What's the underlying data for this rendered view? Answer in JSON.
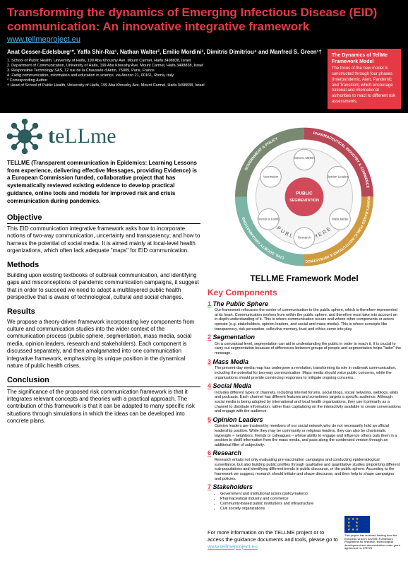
{
  "header": {
    "title": "Transforming the dynamics of Emerging Infectious Disease (EID) communication: An innovative integrative framework",
    "url": "www.tellmeproject.eu",
    "authors": "Anat Gesser-Edelsburg¹*, Yaffa Shir-Raz¹, Nathan Walter², Emilio Mordini³, Dimitris Dimitriou⁴ and Manfred S. Green¹†",
    "affils": [
      "1. School of Public Health, University of Haifa, 199 Aba Khoushy Ave. Mount Carmel, Haifa 3498838, Israel",
      "2. Department of Communication, University of Haifa, 199 Aba Khoushy Ave. Mount Carmel, Haifa 3498838, Israel",
      "3. Responsible Technology SAS, 12 rue de la Chaussée d'Antin, 75009, Paris, France",
      "4. Zadig communication, information and education in science, via Arezzo 21, 00161, Roma, Italy",
      "* Corresponding Author",
      "† Head of School of Public Health, University of Haifa, 199 Aba Khoushy Ave. Mount Carmel, Haifa 3498838, Israel"
    ],
    "model_box_title": "The Dynamics of TellMe Framework Model",
    "model_box_body": "The focus of the new model is constructed through four phases (Interpandemic, Alert, Pandemic and Transition) which encourage national and international authorities to react to different risk assessments."
  },
  "left": {
    "logo_text_main": "t",
    "logo_text_rest": "eLLme",
    "intro": "TELLME (Transparent communication in Epidemics: Learning Lessons from experience, delivering effective Messages, providing Evidence) is a European Commission funded, collaborative project that has systematically reviewed existing evidence to develop practical guidance, online tools and models for improved risk and crisis communication during pandemics.",
    "sections": [
      {
        "h": "Objective",
        "u": true,
        "p": "This EID communication integrative framework asks how to incorporate notions of two-way communication, uncertainty and transparency; and how to harness the potential of social media.  It is aimed mainly at local-level health organizations, which often lack adequate \"maps\" for EID communication."
      },
      {
        "h": "Methods",
        "u": false,
        "p": "Building upon existing textbooks of outbreak communication, and identifying gaps and misconceptions of pandemic communication campaigns, it suggest that in order to succeed we need to adopt a multilayered public health perspective that is aware of technological, cultural and social changes."
      },
      {
        "h": "Results",
        "u": false,
        "p": "We propose a theory-driven framework incorporating key components from culture and communication studies into the wider context of the communication process (public sphere, segmentation, mass media, social media, opinion leaders, research and stakeholders). Each component is discussed separately, and then amalgamated into one communication integrative framework, emphasizing its unique position in the dynamical nature of public health crises."
      },
      {
        "h": "Conclusion",
        "u": true,
        "p": "The significance of the proposed risk communication framework is that it integrates relevant concepts and theories with a practical approach. The contribution of this framework is that it can be adapted to many specific risk situations through simulations in which the ideas can be developed into concrete plans."
      }
    ]
  },
  "right": {
    "diagram_title": "TELLME Framework Model",
    "kc_title": "Key Components",
    "components": [
      {
        "n": "1",
        "name": "The Public Sphere",
        "body": "Our framework refocuses the center of communication to the public sphere, which is therefore represented at its heart. Communication evolves from within the public sphere, and therefore must take into account an in-depth understanding of it. This is where communication occurs and where other components or actors operate (e.g. stakeholders, opinion leaders, and social and mass media). This is where concepts like transparency, risk perception, collective memory, trust and ethics come into play."
      },
      {
        "n": "2",
        "name": "Segmentation",
        "body": "On a conceptual level, segmentation can aid in understanding the public in order to reach it. It is crucial to carry out segmentation because of differences between groups of people and segmentation helps \"tailor\" the message."
      },
      {
        "n": "3",
        "name": "Mass Media",
        "body": "The present-day media map has undergone a revolution, transforming its role in outbreak communication, including the potential for two-way communication. Mass media should voice public concerns, while the organizations should provide convincing responses to mitigate ongoing concerns."
      },
      {
        "n": "4",
        "name": "Social Media",
        "body": "Includes different types of channels, including Internet forums, social blogs, social networks, weblogs, wikis and podcasts. Each channel has different features and sometimes targets a specific audience. Although social media is being adopted by international and local health organizations, they use it primarily as a channel to distribute information, rather than capitalizing on the interactivity available to create conversations and engage with the audience."
      },
      {
        "n": "5",
        "name": "Opinion Leaders",
        "body": "Opinion leaders are trustworthy members of our social network who do not necessarily hold an official leadership position.  While they may be community or religious leaders, they can also be charismatic laypeople – neighbors, friends or colleagues – whose ability to engage and influence others puts them in a position to distill information from the mass media, and pass along the condensed version through an additional filter of subjectivity."
      },
      {
        "n": "6",
        "name": "Research",
        "body": "Research entails not only evaluating pre-vaccination campaigns and conducting epidemiological surveillance, but also building public profiles through qualitative and quantitative studies pinpointing different sub-populations and identifying different trends in public discourse, or the public sphere. According to the framework we suggest, research should initiate and shape discourse, and then help to shape campaigns and policies."
      },
      {
        "n": "7",
        "name": "Stakeholders",
        "body": "",
        "bullets": [
          "Government and institutional actors (policymakers)",
          "Pharmaceutical industry and commerce",
          "Community-based public institutions and infrastructure",
          "Civil society organizations"
        ]
      }
    ],
    "footer_text_1": "For more information on the TELLME project or to access the guidance documents and tools, please go to ",
    "footer_link": "www.tellmeproject.eu",
    "eu_text": "This project has received funding from the European Union's Seventh Framework Programme for research, technological development and demonstration under grant agreement no 278723"
  },
  "diagram": {
    "center_label_1": "PUBLIC",
    "center_label_2": "SEGMENTATION",
    "inner_ring": "PUBLIC SPHERE",
    "outer_segments": [
      {
        "label": "GOVERNMENT & POLICY",
        "color": "#7a8a72"
      },
      {
        "label": "PHARMACEUTICAL INDUSTRY & COMMERCE",
        "color": "#b94857"
      },
      {
        "label": "COMMUNITY-BASED PUBLIC INSTITUTIONS & INFRASTRUCTURE",
        "color": "#d09a3e"
      },
      {
        "label": "CIVIL SOCIETY ORGANISATIONS",
        "color": "#7bb5a5"
      }
    ],
    "nodes": [
      "SOCIAL MEDIA",
      "Opinion Leaders",
      "Mass Media",
      "Research",
      "Friends & Family",
      "Vaccination"
    ],
    "center_color": "#d14a5a",
    "inner_ring_color": "#f0f0f0"
  }
}
